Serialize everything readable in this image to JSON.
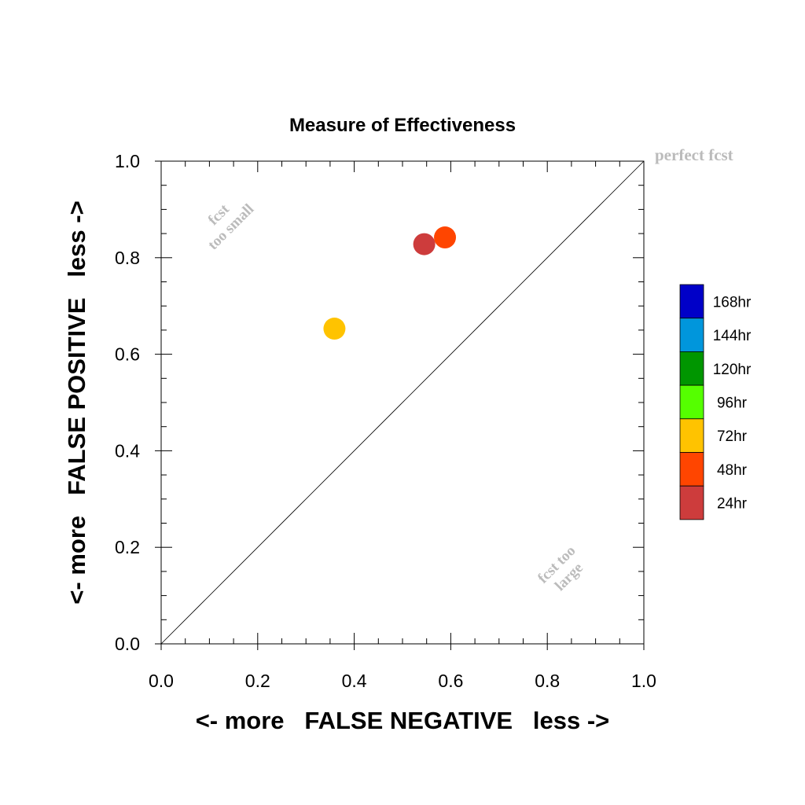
{
  "chart_data": {
    "type": "scatter",
    "title": "Measure of Effectiveness",
    "xlabel": "<- more   FALSE NEGATIVE   less ->",
    "ylabel": "<- more   FALSE POSITIVE   less ->",
    "xlim": [
      0.0,
      1.0
    ],
    "ylim": [
      0.0,
      1.0
    ],
    "x_ticks": [
      "0.0",
      "0.2",
      "0.4",
      "0.6",
      "0.8",
      "1.0"
    ],
    "y_ticks": [
      "0.0",
      "0.2",
      "0.4",
      "0.6",
      "0.8",
      "1.0"
    ],
    "grid": false,
    "reference_line": "diagonal y = x",
    "annotations": {
      "perfect": "perfect fcst",
      "small_line1": "fcst",
      "small_line2": "too small",
      "large_line1": "fcst too",
      "large_line2": "large"
    },
    "legend": {
      "placement": "right",
      "entries": [
        {
          "label": "168hr",
          "color": "#0000c8"
        },
        {
          "label": "144hr",
          "color": "#0096dc"
        },
        {
          "label": "120hr",
          "color": "#009600"
        },
        {
          "label": "96hr",
          "color": "#55ff00"
        },
        {
          "label": "72hr",
          "color": "#ffc300"
        },
        {
          "label": "48hr",
          "color": "#ff4500"
        },
        {
          "label": "24hr",
          "color": "#cd3c3c"
        }
      ]
    },
    "points": [
      {
        "lead": "24hr",
        "x": 0.545,
        "y": 0.828,
        "color": "#cd3c3c"
      },
      {
        "lead": "48hr",
        "x": 0.588,
        "y": 0.842,
        "color": "#ff4500"
      },
      {
        "lead": "72hr",
        "x": 0.359,
        "y": 0.653,
        "color": "#ffc300"
      }
    ]
  }
}
